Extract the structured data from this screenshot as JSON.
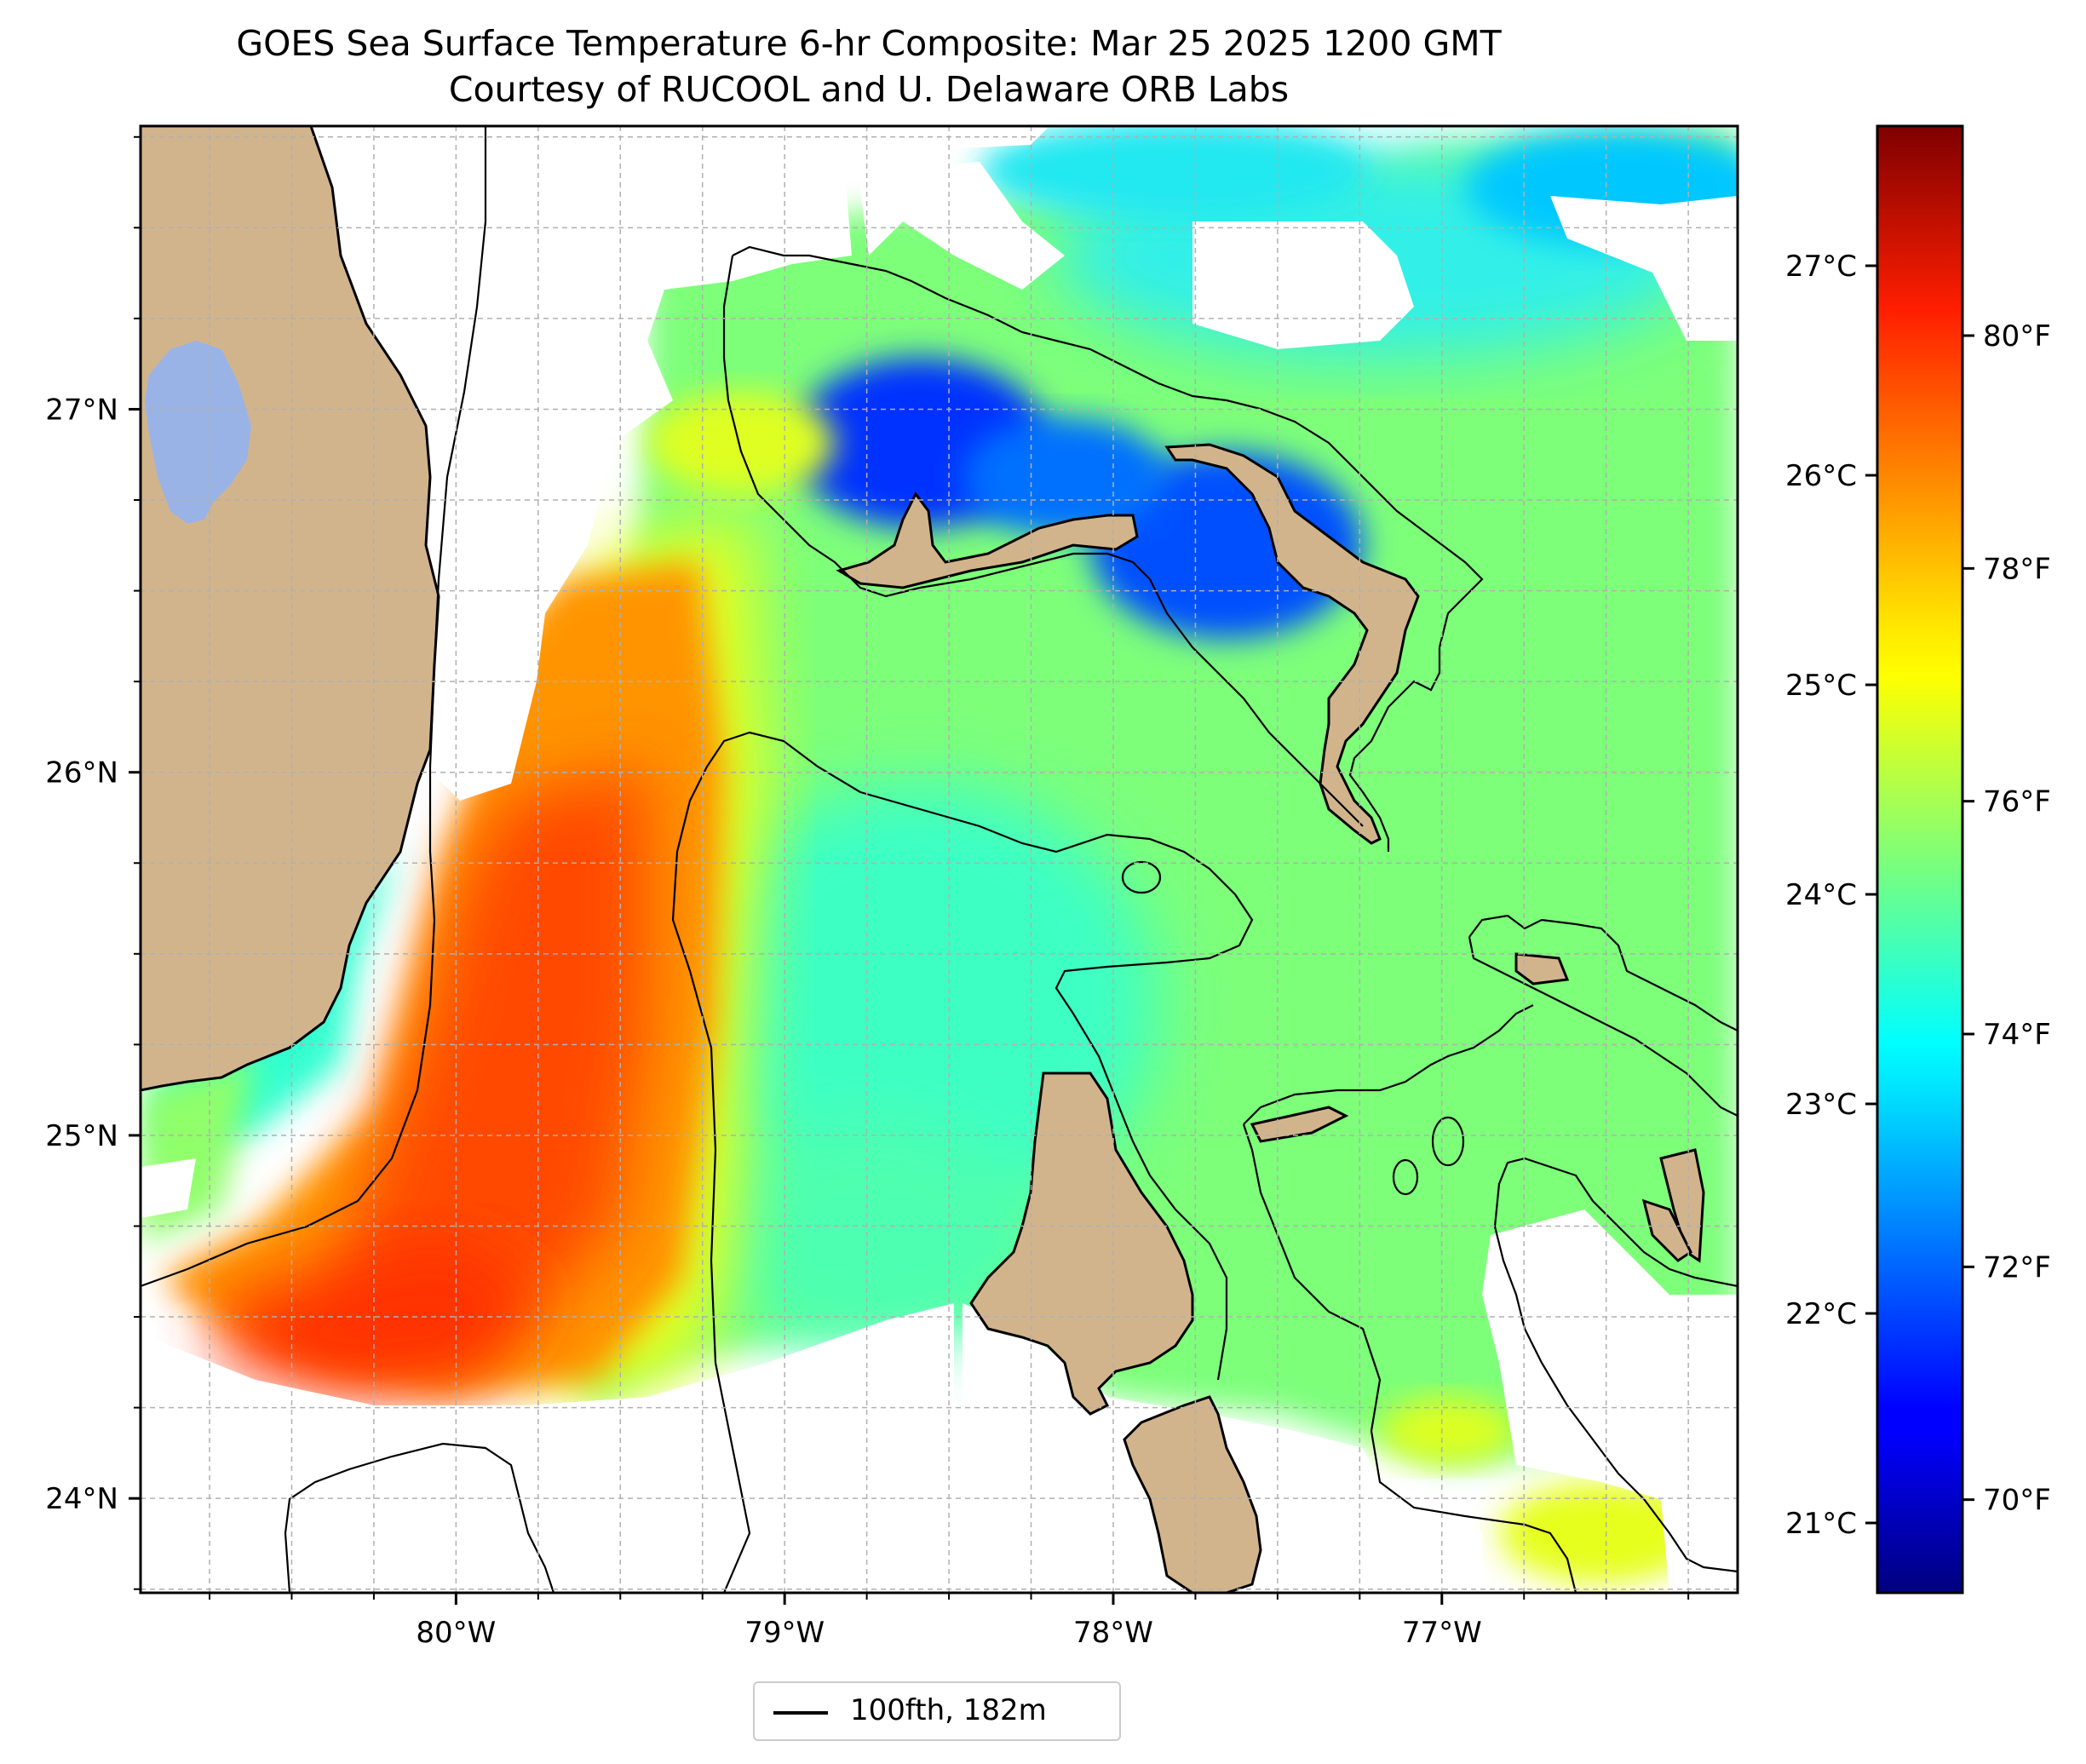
{
  "title": "GOES Sea Surface Temperature 6-hr Composite: Mar 25 2025 1200 GMT",
  "subtitle": "Courtesy of RUCOOL and U. Delaware ORB Labs",
  "map": {
    "lon_range": [
      -80.96,
      -76.1
    ],
    "lat_range": [
      23.74,
      27.78
    ],
    "lon_ticks": [
      "80°W",
      "79°W",
      "78°W",
      "77°W"
    ],
    "lat_ticks": [
      "24°N",
      "25°N",
      "26°N",
      "27°N"
    ],
    "gridlines": "dashed",
    "colors": {
      "land": "#d2b48c",
      "lake": "#99b3e6",
      "coastline": "#000000",
      "no_data": "#ffffff"
    }
  },
  "colorbar": {
    "colormap": "jet",
    "range_f": [
      69.2,
      81.8
    ],
    "celsius_labels": [
      "21°C",
      "22°C",
      "23°C",
      "24°C",
      "25°C",
      "26°C",
      "27°C"
    ],
    "fahrenheit_labels": [
      "70°F",
      "72°F",
      "74°F",
      "76°F",
      "78°F",
      "80°F"
    ]
  },
  "legend": {
    "label": "100fth, 182m"
  }
}
